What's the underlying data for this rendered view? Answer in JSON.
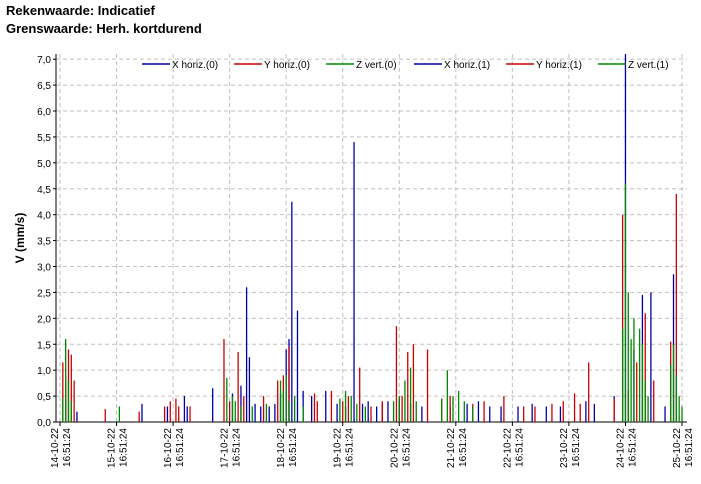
{
  "header": {
    "line1": "Rekenwaarde: Indicatief",
    "line2": "Grenswaarde: Herh. kortdurend"
  },
  "chart_data": {
    "type": "bar",
    "ylabel": "V (mm/s)",
    "ylim": [
      0,
      7.1
    ],
    "y_ticks": [
      "0,0",
      "0,5",
      "1,0",
      "1,5",
      "2,0",
      "2,5",
      "3,0",
      "3,5",
      "4,0",
      "4,5",
      "5,0",
      "5,5",
      "6,0",
      "6,5",
      "7,0"
    ],
    "x_ticks": [
      {
        "date": "14-10-22",
        "time": "16:51:24"
      },
      {
        "date": "15-10-22",
        "time": "16:51:24"
      },
      {
        "date": "16-10-22",
        "time": "16:51:24"
      },
      {
        "date": "17-10-22",
        "time": "16:51:24"
      },
      {
        "date": "18-10-22",
        "time": "16:51:24"
      },
      {
        "date": "19-10-22",
        "time": "16:51:24"
      },
      {
        "date": "20-10-22",
        "time": "16:51:24"
      },
      {
        "date": "21-10-22",
        "time": "16:51:24"
      },
      {
        "date": "22-10-22",
        "time": "16:51:24"
      },
      {
        "date": "23-10-22",
        "time": "16:51:24"
      },
      {
        "date": "24-10-22",
        "time": "16:51:24"
      },
      {
        "date": "25-10-22",
        "time": "16:51:24"
      }
    ],
    "xlim_days": [
      0,
      11
    ],
    "grid": true,
    "legend_placement": "top",
    "series": [
      {
        "name": "X horiz.(0)",
        "color": "#0000aa",
        "x": [
          0.1,
          0.3,
          1.45,
          1.9,
          2.2,
          2.25,
          2.7,
          3.05,
          3.2,
          3.3,
          3.35,
          3.45,
          3.55,
          3.7,
          3.8,
          3.9,
          4.0,
          4.05,
          4.1,
          4.2,
          4.3,
          4.45,
          4.7,
          4.9,
          5.05,
          5.2,
          5.35,
          5.45,
          5.6,
          5.7,
          5.8,
          6.0,
          6.2,
          6.4,
          6.9,
          7.2,
          7.4,
          7.6,
          7.8,
          8.1,
          8.35,
          8.6,
          8.85,
          9.3,
          9.45,
          9.8,
          10.0,
          10.15,
          10.3,
          10.45,
          10.7,
          10.85
        ],
        "values": [
          0.45,
          0.2,
          0.35,
          0.3,
          0.5,
          0.3,
          0.65,
          0.55,
          0.7,
          2.6,
          1.25,
          0.35,
          0.3,
          0.3,
          0.35,
          0.55,
          1.4,
          1.6,
          4.25,
          2.15,
          0.6,
          0.5,
          0.6,
          0.35,
          0.3,
          5.4,
          0.35,
          0.4,
          0.3,
          0.35,
          0.4,
          0.45,
          0.35,
          0.3,
          0.3,
          0.35,
          0.4,
          0.3,
          0.3,
          0.3,
          0.35,
          0.3,
          0.3,
          0.4,
          0.35,
          0.5,
          7.1,
          1.4,
          2.45,
          2.5,
          0.3,
          2.85
        ]
      },
      {
        "name": "Y horiz.(0)",
        "color": "#cc0000",
        "x": [
          0.05,
          0.1,
          0.15,
          0.2,
          0.25,
          0.8,
          1.4,
          1.85,
          1.95,
          2.05,
          2.1,
          2.3,
          2.9,
          3.0,
          3.15,
          3.25,
          3.6,
          3.85,
          3.95,
          4.05,
          4.5,
          4.55,
          4.8,
          5.0,
          5.1,
          5.3,
          5.5,
          5.7,
          5.95,
          6.05,
          6.15,
          6.25,
          6.5,
          6.75,
          6.9,
          7.3,
          7.5,
          7.85,
          8.2,
          8.4,
          8.7,
          8.9,
          9.1,
          9.2,
          9.35,
          9.8,
          9.95,
          10.05,
          10.2,
          10.35,
          10.5,
          10.8,
          10.9
        ],
        "values": [
          1.15,
          0.9,
          1.4,
          1.3,
          0.8,
          0.25,
          0.2,
          0.3,
          0.4,
          0.45,
          0.3,
          0.3,
          1.6,
          0.4,
          1.35,
          0.5,
          0.5,
          0.8,
          0.9,
          1.45,
          0.55,
          0.4,
          0.6,
          0.4,
          0.5,
          1.05,
          0.3,
          0.4,
          1.85,
          0.5,
          1.35,
          1.5,
          1.4,
          0.45,
          0.5,
          0.35,
          0.4,
          0.5,
          0.3,
          0.3,
          0.35,
          0.4,
          0.55,
          0.35,
          1.15,
          0.45,
          4.0,
          0.6,
          1.15,
          2.1,
          0.8,
          1.55,
          4.4
        ]
      },
      {
        "name": "Z vert.(0)",
        "color": "#008800",
        "x": [
          0.05,
          0.1,
          0.15,
          0.2,
          1.05,
          2.95,
          3.05,
          3.1,
          3.2,
          3.4,
          3.65,
          3.9,
          3.95,
          4.0,
          4.05,
          4.15,
          4.3,
          4.95,
          5.05,
          5.15,
          5.25,
          5.4,
          5.9,
          6.0,
          6.1,
          6.2,
          6.3,
          6.75,
          6.85,
          6.95,
          7.05,
          7.15,
          7.3,
          9.95,
          10.0,
          10.05,
          10.1,
          10.15,
          10.25,
          10.3,
          10.35,
          10.4,
          10.8,
          10.85,
          10.9,
          10.95,
          11.0
        ],
        "values": [
          0.45,
          1.6,
          0.8,
          0.4,
          0.3,
          0.85,
          0.5,
          0.4,
          0.3,
          0.3,
          0.35,
          0.8,
          0.6,
          0.9,
          0.4,
          0.5,
          0.3,
          0.45,
          0.6,
          0.5,
          0.35,
          0.3,
          0.4,
          0.5,
          0.8,
          1.05,
          0.4,
          0.45,
          1.0,
          0.5,
          0.6,
          0.4,
          0.3,
          1.8,
          4.6,
          2.5,
          1.6,
          2.0,
          1.8,
          1.5,
          0.8,
          0.5,
          1.1,
          1.5,
          0.9,
          0.5,
          0.3
        ]
      },
      {
        "name": "X horiz.(1)",
        "color": "#0000aa",
        "x": [],
        "values": []
      },
      {
        "name": "Y horiz.(1)",
        "color": "#cc0000",
        "x": [],
        "values": []
      },
      {
        "name": "Z vert.(1)",
        "color": "#008800",
        "x": [],
        "values": []
      }
    ]
  }
}
